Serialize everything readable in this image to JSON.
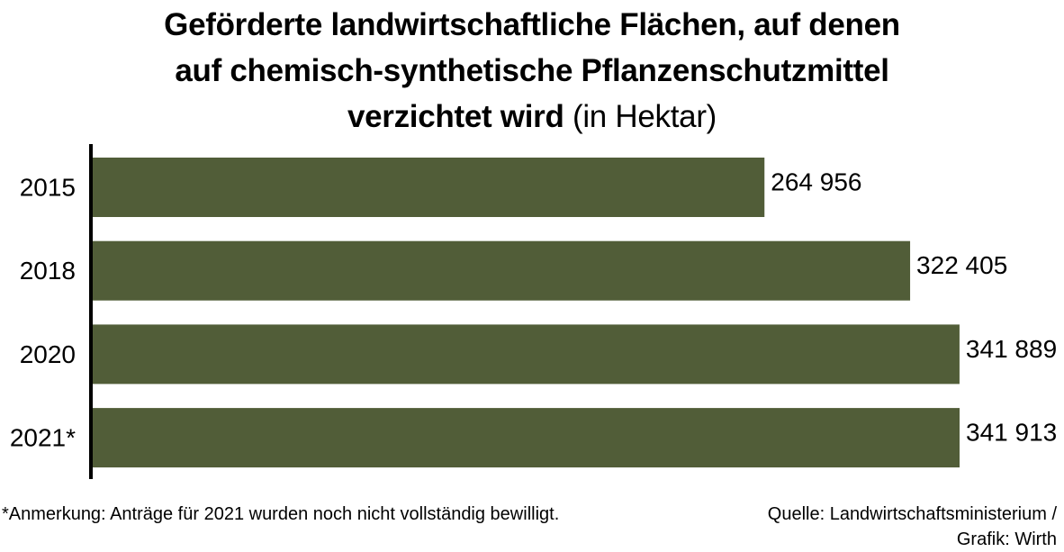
{
  "title": {
    "line1": "Geförderte landwirtschaftliche Flächen, auf denen",
    "line2": "auf chemisch-synthetische Pflanzenschutzmittel",
    "line3": "verzichtet wird",
    "unit": "(in Hektar)"
  },
  "chart_data": {
    "type": "bar",
    "orientation": "horizontal",
    "categories": [
      "2015",
      "2018",
      "2020",
      "2021*"
    ],
    "values": [
      264956,
      322405,
      341889,
      341913
    ],
    "value_labels": [
      "264 956",
      "322 405",
      "341 889",
      "341 913"
    ],
    "xlim": [
      0,
      341913
    ],
    "grid": false,
    "bar_color": "#515d38"
  },
  "footer": {
    "note": "*Anmerkung: Anträge für 2021 wurden noch nicht vollständig bewilligt.",
    "source_line1": "Quelle: Landwirtschaftsministerium /",
    "source_line2": "Grafik: Wirth"
  }
}
